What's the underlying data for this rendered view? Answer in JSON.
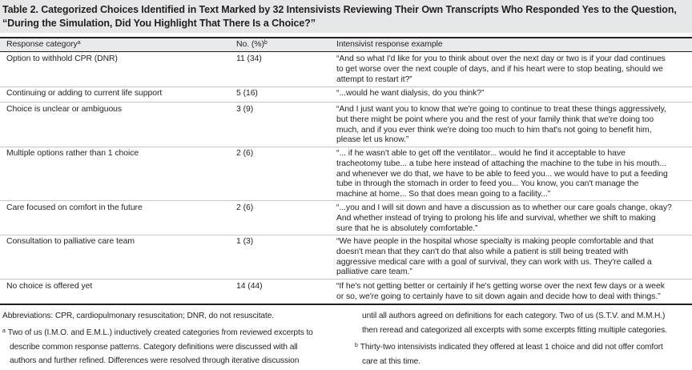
{
  "table": {
    "title_line1": "Table 2. Categorized Choices Identified in Text Marked by 32 Intensivists Reviewing Their Own Transcripts Who Responded Yes to the Question,",
    "title_line2": "“During the Simulation, Did You Highlight That There Is a Choice?”",
    "headers": {
      "category": "Response category",
      "category_mark": "a",
      "count": "No. (%)",
      "count_mark": "b",
      "example": "Intensivist response example"
    },
    "rows": [
      {
        "category": "Option to withhold CPR (DNR)",
        "count": "11 (34)",
        "example_lines": [
          "“And so what I'd like for you to think about over the next day or two is if your dad continues",
          "to get worse over the next couple of days, and if his heart were to stop beating, should we",
          "attempt to restart it?”"
        ]
      },
      {
        "category": "Continuing or adding to current life support",
        "count": "5 (16)",
        "example_lines": [
          "“...would he want dialysis, do you think?”"
        ]
      },
      {
        "category": "Choice is unclear or ambiguous",
        "count": "3 (9)",
        "example_lines": [
          "“And I just want you to know that we're going to continue to treat these things aggressively,",
          "but there might be point where you and the rest of your family think that we're doing too",
          "much, and if you ever think we're doing too much to him that's not going to benefit him,",
          "please let us know.”"
        ]
      },
      {
        "category": "Multiple options rather than 1 choice",
        "count": "2 (6)",
        "example_lines": [
          "“... if he wasn't able to get off the ventilator... would he find it acceptable to have",
          "tracheotomy tube... a tube here instead of attaching the machine to the tube in his mouth...",
          "and whenever we do that, we have to be able to feed you... we would have to put a feeding",
          "tube in through the stomach in order to feed you... You know, you can't manage the",
          "machine at home... So that does mean going to a facility...”"
        ]
      },
      {
        "category": "Care focused on comfort in the future",
        "count": "2 (6)",
        "example_lines": [
          "“...you and I will sit down and have a discussion as to whether our care goals change, okay?",
          "And whether instead of trying to prolong his life and survival, whether we shift to making",
          "sure that he is absolutely comfortable.”"
        ]
      },
      {
        "category": "Consultation to palliative care team",
        "count": "1 (3)",
        "example_lines": [
          "“We have people in the hospital whose specialty is making people comfortable and that",
          "doesn't mean that they can't do that also while a patient is still being treated with",
          "aggressive medical care with a goal of survival, they can work with us. They're called a",
          "palliative care team.”"
        ]
      },
      {
        "category": "No choice is offered yet",
        "count": "14 (44)",
        "example_lines": [
          "“If he's not getting better or certainly if he's getting worse over the next few days or a week",
          "or so, we're going to certainly have to sit down again and decide how to deal with things.”"
        ]
      }
    ],
    "footnotes": {
      "abbreviations": "Abbreviations: CPR, cardiopulmonary resuscitation; DNR, do not resuscitate.",
      "a_mark": "a",
      "a_lines": [
        "Two of us (I.M.O. and E.M.L.) inductively created categories from reviewed excerpts to",
        "describe common response patterns. Category definitions were discussed with all",
        "authors and further refined. Differences were resolved through iterative discussion"
      ],
      "a_continued": [
        "until all authors agreed on definitions for each category. Two of us (S.T.V. and M.M.H.)",
        "then reread and categorized all excerpts with some excerpts fitting multiple categories."
      ],
      "b_mark": "b",
      "b_lines": [
        "Thirty-two intensivists indicated they offered at least 1 choice and did not offer comfort",
        "care at this time."
      ]
    }
  }
}
